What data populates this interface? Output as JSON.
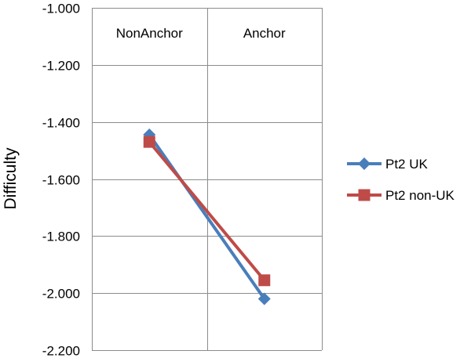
{
  "chart_data": {
    "type": "line",
    "title": "",
    "xlabel": "",
    "ylabel": "Difficulty",
    "categories": [
      "NonAnchor",
      "Anchor"
    ],
    "category_label_position": "top",
    "ylim": [
      -2.2,
      -1.0
    ],
    "y_ticks": [
      -1.0,
      -1.2,
      -1.4,
      -1.6,
      -1.8,
      -2.0,
      -2.2
    ],
    "y_tick_labels": [
      "-1.000",
      "-1.200",
      "-1.400",
      "-1.600",
      "-1.800",
      "-2.000",
      "-2.200"
    ],
    "grid": true,
    "legend_position": "right",
    "series": [
      {
        "name": "Pt2 UK",
        "values": [
          -1.445,
          -2.02
        ],
        "color": "#4a7ebb",
        "marker": "diamond"
      },
      {
        "name": "Pt2 non-UK",
        "values": [
          -1.47,
          -1.955
        ],
        "color": "#be4b48",
        "marker": "square"
      }
    ]
  }
}
